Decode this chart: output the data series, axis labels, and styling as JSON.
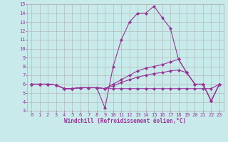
{
  "background_color": "#c8eaea",
  "grid_color": "#b0b0b0",
  "line_color": "#993399",
  "marker": "D",
  "marker_size": 2,
  "linewidth": 0.8,
  "xlim": [
    -0.5,
    23.5
  ],
  "ylim": [
    3,
    15
  ],
  "xlabel": "Windchill (Refroidissement éolien,°C)",
  "xticks": [
    0,
    1,
    2,
    3,
    4,
    5,
    6,
    7,
    8,
    9,
    10,
    11,
    12,
    13,
    14,
    15,
    16,
    17,
    18,
    19,
    20,
    21,
    22,
    23
  ],
  "yticks": [
    3,
    4,
    5,
    6,
    7,
    8,
    9,
    10,
    11,
    12,
    13,
    14,
    15
  ],
  "tick_fontsize": 5,
  "xlabel_fontsize": 5.5,
  "series": [
    [
      6.0,
      6.0,
      6.0,
      5.9,
      5.5,
      5.5,
      5.6,
      5.6,
      5.6,
      3.3,
      8.0,
      11.0,
      13.0,
      14.0,
      14.0,
      14.8,
      13.5,
      12.3,
      8.8,
      7.3,
      6.0,
      6.0,
      4.1,
      6.0
    ],
    [
      6.0,
      6.0,
      6.0,
      5.9,
      5.5,
      5.5,
      5.6,
      5.6,
      5.6,
      5.5,
      5.5,
      5.5,
      5.5,
      5.5,
      5.5,
      5.5,
      5.5,
      5.5,
      5.5,
      5.5,
      5.5,
      5.5,
      5.5,
      6.0
    ],
    [
      6.0,
      6.0,
      6.0,
      5.9,
      5.5,
      5.5,
      5.6,
      5.6,
      5.6,
      5.5,
      6.0,
      6.5,
      7.0,
      7.5,
      7.8,
      8.0,
      8.2,
      8.5,
      8.8,
      7.3,
      6.0,
      6.0,
      4.1,
      6.0
    ],
    [
      6.0,
      6.0,
      6.0,
      5.9,
      5.5,
      5.5,
      5.6,
      5.6,
      5.6,
      5.5,
      5.8,
      6.2,
      6.5,
      6.8,
      7.0,
      7.2,
      7.3,
      7.5,
      7.6,
      7.3,
      6.0,
      6.0,
      4.1,
      6.0
    ]
  ]
}
